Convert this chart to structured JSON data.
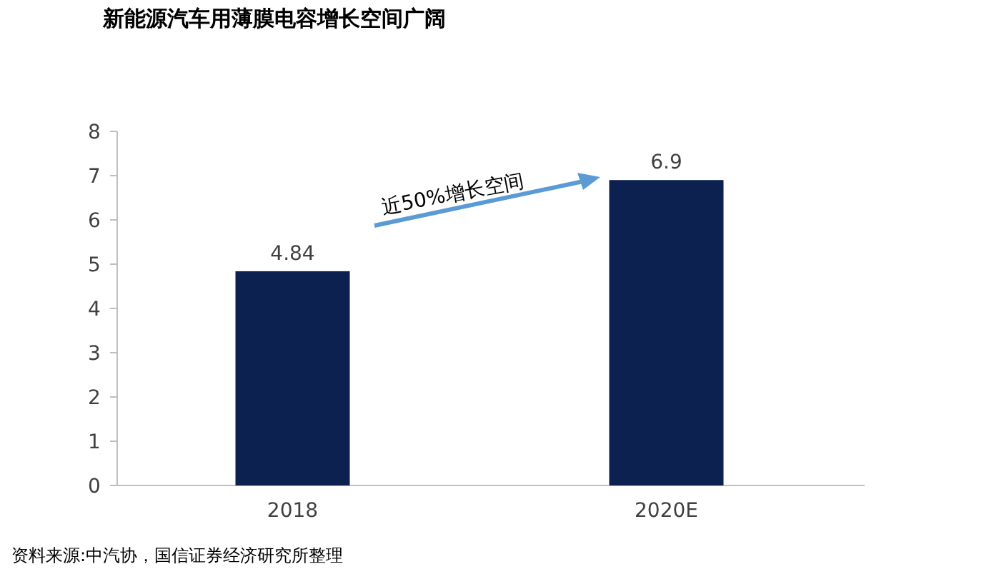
{
  "chart_data": {
    "type": "bar",
    "title": "新能源汽车用薄膜电容增长空间广阔",
    "categories": [
      "2018",
      "2020E"
    ],
    "values": [
      4.84,
      6.9
    ],
    "color": "#0d2150",
    "ylim": [
      0,
      8
    ],
    "yticks": [
      0,
      1,
      2,
      3,
      4,
      5,
      6,
      7,
      8
    ],
    "data_labels": true,
    "annotations": [
      "近50%增长空间",
      "资料来源:中汽协，国信证券经济研究所整理"
    ]
  }
}
